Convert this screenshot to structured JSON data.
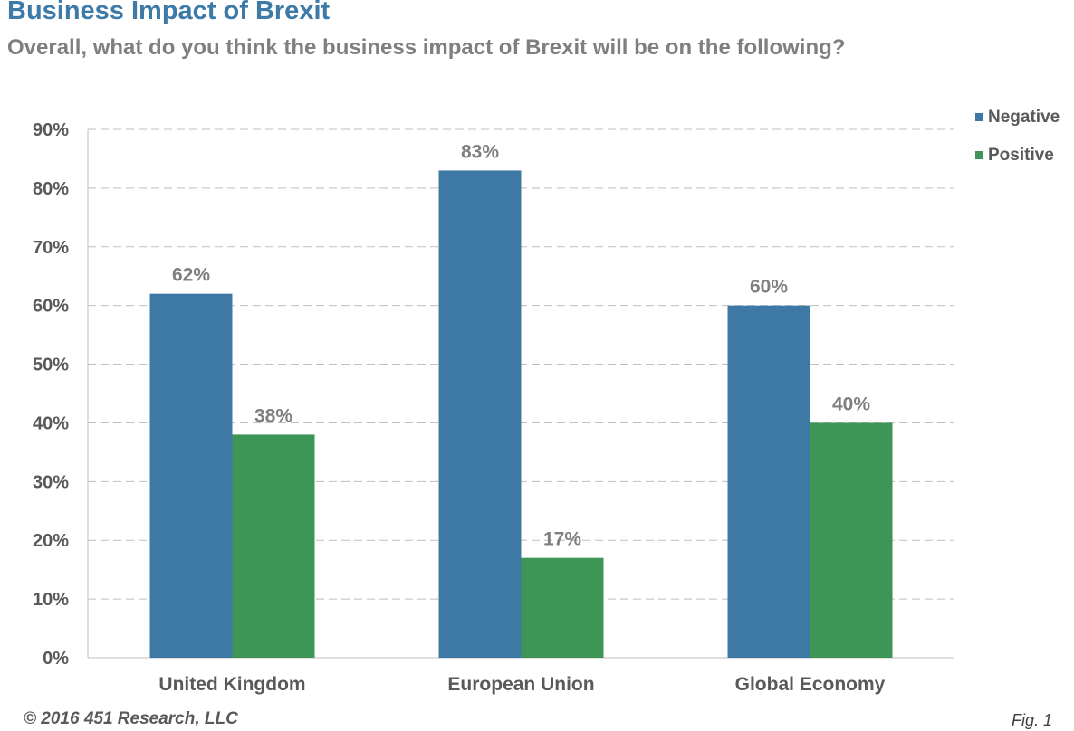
{
  "title": "Business Impact of Brexit",
  "subtitle": "Overall, what do you think the business impact of Brexit will be on the following?",
  "footer": {
    "copyright": "© 2016 451 Research, LLC",
    "figure": "Fig. 1"
  },
  "chart_data": {
    "type": "bar",
    "categories": [
      "United Kingdom",
      "European Union",
      "Global Economy"
    ],
    "series": [
      {
        "name": "Negative",
        "values": [
          62,
          83,
          60
        ],
        "labels": [
          "62%",
          "83%",
          "60%"
        ],
        "color": "#3e79a6"
      },
      {
        "name": "Positive",
        "values": [
          38,
          17,
          40
        ],
        "labels": [
          "38%",
          "17%",
          "40%"
        ],
        "color": "#3d9556"
      }
    ],
    "ylim": [
      0,
      90
    ],
    "yticks": [
      "0%",
      "10%",
      "20%",
      "30%",
      "40%",
      "50%",
      "60%",
      "70%",
      "80%",
      "90%"
    ],
    "grid": true,
    "legend_position": "top-right",
    "colors": {
      "axis_text": "#595959",
      "data_label": "#7f7f7f",
      "gridline": "#bfbfbf"
    }
  }
}
